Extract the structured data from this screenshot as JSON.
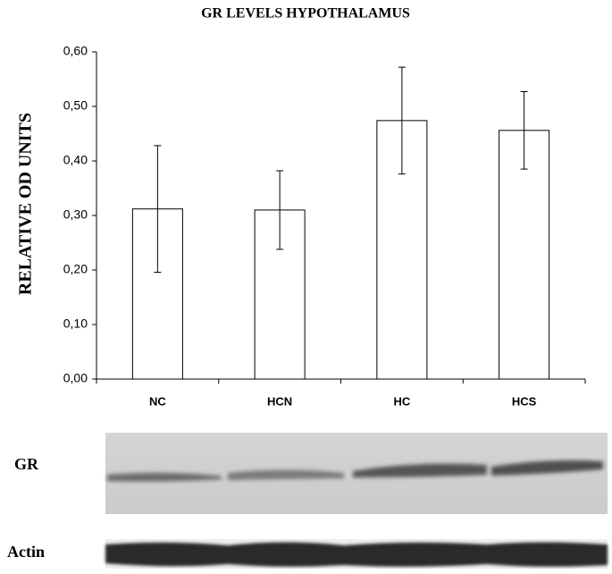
{
  "chart_data": {
    "type": "bar",
    "title": "GR LEVELS HYPOTHALAMUS",
    "y_label": "RELATIVE OD UNITS",
    "categories": [
      "NC",
      "HCN",
      "HC",
      "HCS"
    ],
    "values": [
      0.312,
      0.31,
      0.474,
      0.456
    ],
    "errors": [
      0.116,
      0.072,
      0.098,
      0.071
    ],
    "color": "#ffffff",
    "ylim": [
      0,
      0.6
    ],
    "yticks": [
      {
        "value": 0,
        "label": "0,00"
      },
      {
        "value": 0.1,
        "label": "0,10"
      },
      {
        "value": 0.2,
        "label": "0,20"
      },
      {
        "value": 0.3,
        "label": "0,30"
      },
      {
        "value": 0.4,
        "label": "0,40"
      },
      {
        "value": 0.5,
        "label": "0,50"
      },
      {
        "value": 0.6,
        "label": "0,60"
      }
    ],
    "grid": false
  },
  "blot": {
    "labels": [
      "GR",
      "Actin"
    ]
  }
}
